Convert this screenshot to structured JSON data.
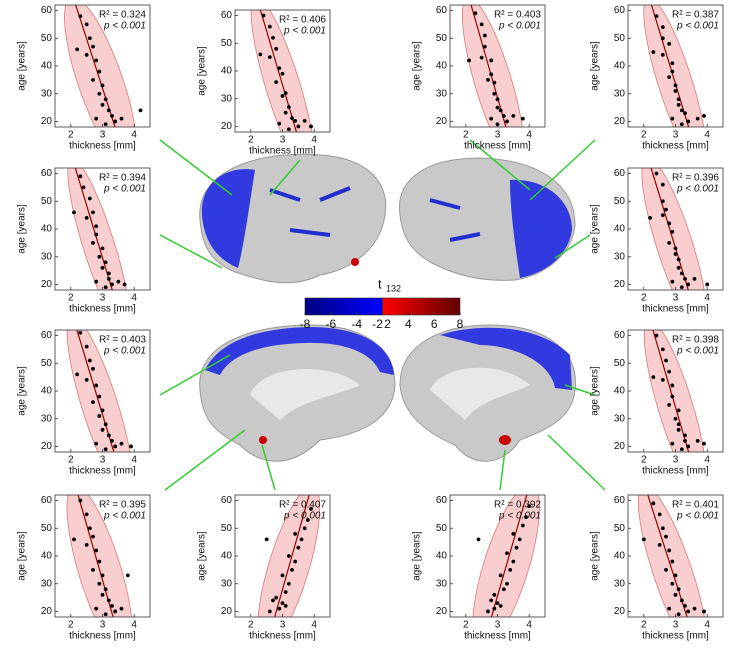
{
  "chart_data": [
    {
      "type": "scatter",
      "x_label": "thickness [mm]",
      "y_label": "age [years]",
      "annotations": [
        "R² = 0.324",
        "p < 0.001"
      ],
      "x": [
        2.3,
        2.5,
        2.6,
        2.7,
        2.5,
        2.8,
        2.9,
        2.7,
        3.0,
        2.9,
        3.1,
        3.0,
        3.2,
        3.3,
        2.8,
        3.4,
        3.1,
        3.6,
        2.2,
        4.2
      ],
      "y": [
        58,
        55,
        50,
        47,
        44,
        42,
        38,
        35,
        33,
        30,
        28,
        26,
        24,
        22,
        21,
        20,
        19,
        21,
        46,
        24
      ],
      "xlim": [
        1.5,
        4.5
      ],
      "ylim": [
        18,
        62
      ],
      "xticks": [
        2,
        3,
        4
      ],
      "yticks": [
        20,
        30,
        40,
        50,
        60
      ]
    },
    {
      "type": "scatter",
      "x_label": "thickness [mm]",
      "y_label": "age [years]",
      "annotations": [
        "R² = 0.406",
        "p < 0.001"
      ],
      "x": [
        2.4,
        2.6,
        2.7,
        2.8,
        2.6,
        2.9,
        3.0,
        2.8,
        3.1,
        3.0,
        3.2,
        3.1,
        3.3,
        3.4,
        2.9,
        3.5,
        3.2,
        3.7,
        2.3,
        3.9
      ],
      "y": [
        60,
        56,
        52,
        48,
        45,
        41,
        39,
        36,
        32,
        31,
        27,
        25,
        23,
        22,
        21,
        20,
        19,
        22,
        46,
        20
      ],
      "xlim": [
        1.5,
        4.5
      ],
      "ylim": [
        18,
        62
      ],
      "xticks": [
        2,
        3,
        4
      ],
      "yticks": [
        20,
        30,
        40,
        50,
        60
      ]
    },
    {
      "type": "scatter",
      "x_label": "thickness [mm]",
      "y_label": "age [years]",
      "annotations": [
        "R² = 0.403",
        "p < 0.001"
      ],
      "x": [
        2.3,
        2.5,
        2.6,
        2.6,
        2.5,
        2.8,
        2.8,
        2.7,
        2.9,
        2.9,
        3.0,
        3.0,
        3.1,
        3.2,
        2.8,
        3.3,
        3.0,
        3.5,
        2.1,
        3.8
      ],
      "y": [
        59,
        55,
        51,
        47,
        43,
        42,
        37,
        35,
        34,
        30,
        28,
        25,
        24,
        22,
        21,
        20,
        19,
        22,
        42,
        21
      ],
      "xlim": [
        1.5,
        4.5
      ],
      "ylim": [
        18,
        62
      ],
      "xticks": [
        2,
        3,
        4
      ],
      "yticks": [
        20,
        30,
        40,
        50,
        60
      ]
    },
    {
      "type": "scatter",
      "x_label": "thickness [mm]",
      "y_label": "age [years]",
      "annotations": [
        "R² = 0.387",
        "p < 0.001"
      ],
      "x": [
        2.4,
        2.6,
        2.6,
        2.8,
        2.6,
        2.9,
        2.9,
        2.8,
        3.0,
        3.0,
        3.1,
        3.1,
        3.2,
        3.3,
        2.9,
        3.4,
        3.2,
        3.7,
        2.3,
        3.9
      ],
      "y": [
        58,
        54,
        50,
        48,
        44,
        41,
        38,
        36,
        33,
        31,
        28,
        26,
        24,
        23,
        21,
        20,
        19,
        21,
        45,
        22
      ],
      "xlim": [
        1.5,
        4.5
      ],
      "ylim": [
        18,
        62
      ],
      "xticks": [
        2,
        3,
        4
      ],
      "yticks": [
        20,
        30,
        40,
        50,
        60
      ]
    },
    {
      "type": "scatter",
      "x_label": "thickness [mm]",
      "y_label": "age [years]",
      "annotations": [
        "R² = 0.394",
        "p < 0.001"
      ],
      "x": [
        2.3,
        2.4,
        2.6,
        2.7,
        2.5,
        2.8,
        2.8,
        2.7,
        3.0,
        2.9,
        3.1,
        3.0,
        3.2,
        3.2,
        2.8,
        3.3,
        3.1,
        3.5,
        2.1,
        3.7
      ],
      "y": [
        59,
        55,
        51,
        46,
        44,
        41,
        38,
        35,
        33,
        30,
        28,
        26,
        24,
        22,
        21,
        20,
        19,
        21,
        46,
        20
      ],
      "xlim": [
        1.5,
        4.5
      ],
      "ylim": [
        18,
        62
      ],
      "xticks": [
        2,
        3,
        4
      ],
      "yticks": [
        20,
        30,
        40,
        50,
        60
      ]
    },
    {
      "type": "scatter",
      "x_label": "thickness [mm]",
      "y_label": "age [years]",
      "annotations": [
        "R² = 0.396",
        "p < 0.001"
      ],
      "x": [
        2.4,
        2.6,
        2.6,
        2.7,
        2.6,
        2.8,
        2.9,
        2.8,
        3.0,
        3.0,
        3.1,
        3.1,
        3.2,
        3.3,
        2.9,
        3.4,
        3.2,
        3.6,
        2.2,
        4.0
      ],
      "y": [
        60,
        56,
        50,
        47,
        45,
        42,
        39,
        35,
        33,
        31,
        29,
        26,
        24,
        22,
        21,
        20,
        19,
        22,
        44,
        20
      ],
      "xlim": [
        1.5,
        4.5
      ],
      "ylim": [
        18,
        62
      ],
      "xticks": [
        2,
        3,
        4
      ],
      "yticks": [
        20,
        30,
        40,
        50,
        60
      ]
    },
    {
      "type": "scatter",
      "x_label": "thickness [mm]",
      "y_label": "age [years]",
      "annotations": [
        "R² = 0.403",
        "p < 0.001"
      ],
      "x": [
        2.3,
        2.5,
        2.6,
        2.7,
        2.5,
        2.8,
        2.9,
        2.7,
        3.0,
        2.9,
        3.1,
        3.0,
        3.2,
        3.3,
        2.8,
        3.4,
        3.1,
        3.6,
        2.2,
        3.9
      ],
      "y": [
        61,
        56,
        51,
        48,
        44,
        42,
        38,
        36,
        33,
        31,
        28,
        26,
        24,
        22,
        21,
        20,
        19,
        21,
        46,
        20
      ],
      "xlim": [
        1.5,
        4.5
      ],
      "ylim": [
        18,
        62
      ],
      "xticks": [
        2,
        3,
        4
      ],
      "yticks": [
        20,
        30,
        40,
        50,
        60
      ]
    },
    {
      "type": "scatter",
      "x_label": "thickness [mm]",
      "y_label": "age [years]",
      "annotations": [
        "R² = 0.398",
        "p < 0.001"
      ],
      "x": [
        2.4,
        2.6,
        2.7,
        2.8,
        2.6,
        2.9,
        2.9,
        2.8,
        3.1,
        3.0,
        3.1,
        3.1,
        3.3,
        3.3,
        2.9,
        3.4,
        3.2,
        3.7,
        2.3,
        3.9
      ],
      "y": [
        60,
        55,
        51,
        47,
        44,
        42,
        38,
        35,
        33,
        30,
        28,
        26,
        24,
        22,
        21,
        20,
        19,
        22,
        45,
        21
      ],
      "xlim": [
        1.5,
        4.5
      ],
      "ylim": [
        18,
        62
      ],
      "xticks": [
        2,
        3,
        4
      ],
      "yticks": [
        20,
        30,
        40,
        50,
        60
      ]
    },
    {
      "type": "scatter",
      "x_label": "thickness [mm]",
      "y_label": "age [years]",
      "annotations": [
        "R² = 0.395",
        "p < 0.001"
      ],
      "x": [
        2.3,
        2.5,
        2.6,
        2.7,
        2.5,
        2.8,
        2.9,
        2.7,
        3.0,
        2.9,
        3.1,
        3.0,
        3.2,
        3.3,
        2.8,
        3.4,
        3.1,
        3.6,
        2.1,
        3.8
      ],
      "y": [
        60,
        55,
        50,
        47,
        44,
        42,
        38,
        35,
        33,
        30,
        28,
        26,
        24,
        22,
        21,
        20,
        19,
        21,
        46,
        33
      ],
      "xlim": [
        1.5,
        4.5
      ],
      "ylim": [
        18,
        62
      ],
      "xticks": [
        2,
        3,
        4
      ],
      "yticks": [
        20,
        30,
        40,
        50,
        60
      ]
    },
    {
      "type": "scatter",
      "x_label": "thickness [mm]",
      "y_label": "age [years]",
      "annotations": [
        "R² = 0.407",
        "p < 0.001"
      ],
      "x": [
        2.6,
        2.9,
        3.0,
        2.8,
        3.1,
        3.2,
        3.0,
        3.3,
        3.4,
        3.2,
        3.5,
        3.6,
        3.4,
        3.7,
        3.8,
        3.9,
        3.1,
        2.7,
        2.5
      ],
      "y": [
        20,
        21,
        23,
        25,
        27,
        30,
        33,
        35,
        38,
        40,
        43,
        46,
        48,
        50,
        53,
        57,
        22,
        24,
        46
      ],
      "xlim": [
        1.5,
        4.5
      ],
      "ylim": [
        18,
        62
      ],
      "xticks": [
        2,
        3,
        4
      ],
      "yticks": [
        20,
        30,
        40,
        50,
        60
      ]
    },
    {
      "type": "scatter",
      "x_label": "thickness [mm]",
      "y_label": "age [years]",
      "annotations": [
        "R² = 0.392",
        "p < 0.001"
      ],
      "x": [
        2.7,
        2.9,
        3.0,
        2.9,
        3.2,
        3.3,
        3.1,
        3.4,
        3.5,
        3.3,
        3.6,
        3.7,
        3.5,
        3.8,
        3.9,
        4.0,
        3.1,
        2.8,
        2.4
      ],
      "y": [
        20,
        21,
        23,
        26,
        28,
        30,
        33,
        35,
        38,
        41,
        43,
        46,
        48,
        51,
        54,
        58,
        22,
        24,
        46
      ],
      "xlim": [
        1.5,
        4.5
      ],
      "ylim": [
        18,
        62
      ],
      "xticks": [
        2,
        3,
        4
      ],
      "yticks": [
        20,
        30,
        40,
        50,
        60
      ]
    },
    {
      "type": "scatter",
      "x_label": "thickness [mm]",
      "y_label": "age [years]",
      "annotations": [
        "R² = 0.401",
        "p < 0.001"
      ],
      "x": [
        2.3,
        2.5,
        2.6,
        2.7,
        2.5,
        2.8,
        2.9,
        2.7,
        3.0,
        2.9,
        3.1,
        3.0,
        3.2,
        3.3,
        2.8,
        3.4,
        3.1,
        3.6,
        2.0,
        3.9
      ],
      "y": [
        59,
        55,
        50,
        47,
        44,
        42,
        38,
        35,
        33,
        30,
        28,
        26,
        24,
        22,
        21,
        20,
        19,
        21,
        46,
        20
      ],
      "xlim": [
        1.5,
        4.5
      ],
      "ylim": [
        18,
        62
      ],
      "xticks": [
        2,
        3,
        4
      ],
      "yticks": [
        20,
        30,
        40,
        50,
        60
      ]
    },
    {
      "type": "colorbar",
      "title": "t",
      "title_subscript": "132",
      "segments": [
        {
          "lim": [
            -8,
            -2
          ],
          "ticks": [
            -8,
            -6,
            -4,
            -2
          ],
          "colors": [
            "#000080",
            "#0000ff"
          ]
        },
        {
          "lim": [
            2,
            8
          ],
          "ticks": [
            2,
            4,
            6,
            8
          ],
          "colors": [
            "#ff0000",
            "#600000"
          ]
        }
      ]
    }
  ]
}
